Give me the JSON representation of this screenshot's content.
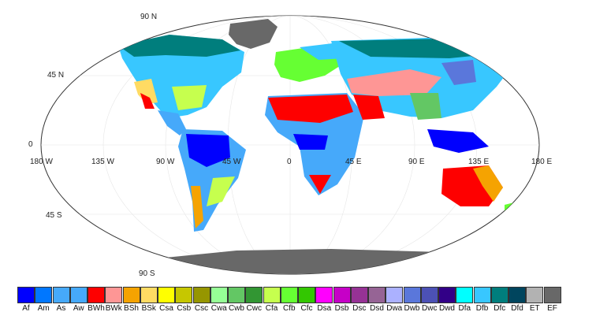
{
  "map": {
    "lat_labels": [
      "90 N",
      "45 N",
      "0",
      "45 S",
      "90 S"
    ],
    "lon_labels": [
      "180 W",
      "135 W",
      "90 W",
      "45 W",
      "0",
      "45 E",
      "90 E",
      "135 E",
      "180 E"
    ]
  },
  "legend": [
    {
      "code": "Af",
      "color": "#0000FE"
    },
    {
      "code": "Am",
      "color": "#0077FF"
    },
    {
      "code": "As",
      "color": "#46A9FA"
    },
    {
      "code": "Aw",
      "color": "#46A9FA"
    },
    {
      "code": "BWh",
      "color": "#FE0000"
    },
    {
      "code": "BWk",
      "color": "#FE9695"
    },
    {
      "code": "BSh",
      "color": "#F5A301"
    },
    {
      "code": "BSk",
      "color": "#FFDB63"
    },
    {
      "code": "Csa",
      "color": "#FFFF00"
    },
    {
      "code": "Csb",
      "color": "#C6C700"
    },
    {
      "code": "Csc",
      "color": "#969600"
    },
    {
      "code": "Cwa",
      "color": "#96FF96"
    },
    {
      "code": "Cwb",
      "color": "#63C764"
    },
    {
      "code": "Cwc",
      "color": "#329633"
    },
    {
      "code": "Cfa",
      "color": "#C6FF4E"
    },
    {
      "code": "Cfb",
      "color": "#66FF33"
    },
    {
      "code": "Cfc",
      "color": "#33C701"
    },
    {
      "code": "Dsa",
      "color": "#FF00FE"
    },
    {
      "code": "Dsb",
      "color": "#C600C7"
    },
    {
      "code": "Dsc",
      "color": "#963295"
    },
    {
      "code": "Dsd",
      "color": "#966495"
    },
    {
      "code": "Dwa",
      "color": "#ABB1FF"
    },
    {
      "code": "Dwb",
      "color": "#5A77DB"
    },
    {
      "code": "Dwc",
      "color": "#4C51B5"
    },
    {
      "code": "Dwd",
      "color": "#320087"
    },
    {
      "code": "Dfa",
      "color": "#00FFFF"
    },
    {
      "code": "Dfb",
      "color": "#38C7FF"
    },
    {
      "code": "Dfc",
      "color": "#007E7D"
    },
    {
      "code": "Dfd",
      "color": "#00455E"
    },
    {
      "code": "ET",
      "color": "#B2B2B2"
    },
    {
      "code": "EF",
      "color": "#686868"
    }
  ]
}
